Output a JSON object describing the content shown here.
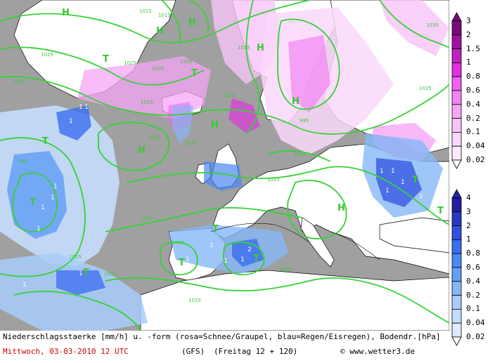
{
  "footer": {
    "line1": "Niederschlagsstaerke [mm/h] u. -form (rosa=Schnee/Graupel, blau=Regen/Eisregen), Bodendr.[hPa]",
    "date": "Mittwoch, 03-03-2010  12 UTC",
    "model": "(GFS)",
    "forecast": "(Freitag 12 + 120)",
    "copyright": "www.wetter3.de"
  },
  "colorbar_snow": {
    "name": "Schnee/Graupel",
    "labels": [
      "3",
      "2",
      "1.5",
      "1",
      "0.8",
      "0.6",
      "0.4",
      "0.2",
      "0.1",
      "0.04",
      "0.02"
    ],
    "colors": [
      "#7a0a7a",
      "#a010a0",
      "#c020c0",
      "#e030e0",
      "#f060f0",
      "#f484f4",
      "#f6a6f6",
      "#f8c4f8",
      "#fad8fa",
      "#fcebfc"
    ]
  },
  "colorbar_rain": {
    "name": "Regen/Eisregen",
    "labels": [
      "4",
      "3",
      "2",
      "1",
      "0.8",
      "0.6",
      "0.4",
      "0.2",
      "0.1",
      "0.04",
      "0.02"
    ],
    "colors": [
      "#2020a0",
      "#2838c0",
      "#3050e0",
      "#3a6ef0",
      "#4a88f4",
      "#64a0f6",
      "#86b8f8",
      "#a8ccfa",
      "#c4ddfc",
      "#dcecfe"
    ]
  },
  "map": {
    "pressure_centers": [
      {
        "label": "H"
      },
      {
        "label": "H"
      },
      {
        "label": "H"
      },
      {
        "label": "H"
      },
      {
        "label": "H"
      },
      {
        "label": "H"
      },
      {
        "label": "H"
      },
      {
        "label": "H"
      },
      {
        "label": "T"
      },
      {
        "label": "T"
      },
      {
        "label": "T"
      },
      {
        "label": "T"
      },
      {
        "label": "T"
      },
      {
        "label": "T"
      },
      {
        "label": "T"
      },
      {
        "label": "T"
      },
      {
        "label": "T"
      },
      {
        "label": "T"
      }
    ],
    "isobar_labels": [
      "1015",
      "1015",
      "1025",
      "1025",
      "1005",
      "1015",
      "1005",
      "1015",
      "1025",
      "1015",
      "1025",
      "1035",
      "995",
      "1025",
      "1005",
      "1015",
      "1005",
      "1015",
      "1015",
      "1015",
      "1025",
      "995",
      "1015",
      "1005"
    ],
    "precip_labels": [
      "1",
      "1",
      "1",
      "1",
      "1",
      "1",
      "1",
      "1",
      "1",
      "1",
      "1",
      "1",
      "2",
      "1",
      "1",
      "1",
      "1",
      "1",
      "1"
    ]
  }
}
